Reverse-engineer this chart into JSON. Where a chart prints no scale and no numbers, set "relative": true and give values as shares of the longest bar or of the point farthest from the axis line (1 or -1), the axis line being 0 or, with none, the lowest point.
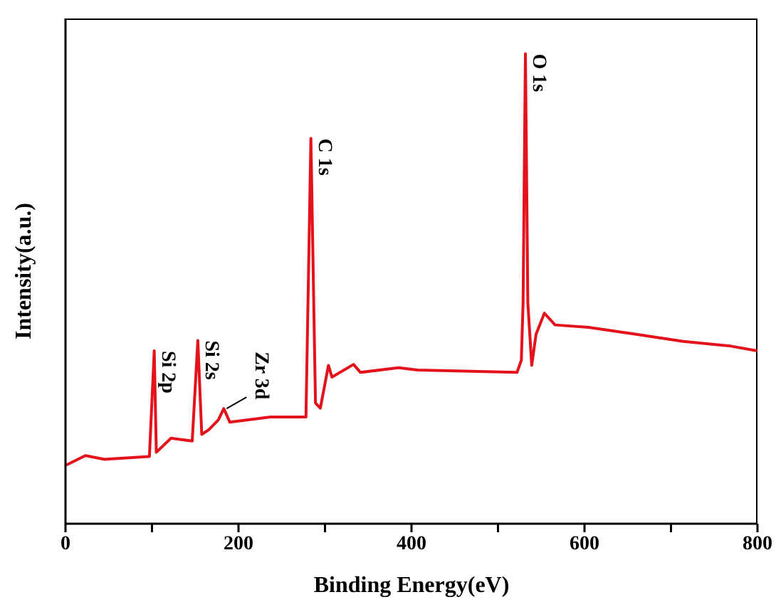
{
  "chart_data": {
    "type": "line",
    "xlabel": "Binding Energy(eV)",
    "ylabel": "Intensity(a.u.)",
    "relative": true,
    "tick_labels": "x",
    "xlim": [
      0,
      800
    ],
    "xticks": [
      0,
      {
        "value": 100,
        "label": null
      },
      200,
      {
        "value": 300,
        "label": null
      },
      400,
      {
        "value": 500,
        "label": null
      },
      600,
      {
        "value": 700,
        "label": null
      },
      800
    ],
    "marker": "none",
    "line_style": "solid",
    "series": [
      {
        "color": "#e3121b",
        "x": [
          1,
          23,
          45,
          97,
          102.6,
          105,
          122,
          146.5,
          153,
          157.5,
          165.7,
          176.7,
          183,
          190,
          237,
          278,
          283.7,
          289,
          294.6,
          304,
          308,
          333,
          341,
          385,
          407,
          522,
          527,
          529,
          531.7,
          534.5,
          539,
          544,
          553.6,
          566,
          604.6,
          659.6,
          714,
          769,
          799.5
        ],
        "values": [
          0.125,
          0.145,
          0.137,
          0.143,
          0.368,
          0.152,
          0.182,
          0.176,
          0.39,
          0.19,
          0.2,
          0.221,
          0.245,
          0.216,
          0.227,
          0.227,
          0.82,
          0.257,
          0.246,
          0.337,
          0.312,
          0.339,
          0.322,
          0.332,
          0.327,
          0.322,
          0.348,
          0.47,
          1.0,
          0.47,
          0.337,
          0.403,
          0.448,
          0.423,
          0.418,
          0.403,
          0.388,
          0.378,
          0.368
        ]
      }
    ],
    "annotations": [
      {
        "text": "Si 2p",
        "x": 102.6,
        "y": 0.368
      },
      {
        "text": "Si 2s",
        "x": 153,
        "y": 0.39
      },
      {
        "text": "Zr 3d",
        "x": 183,
        "y": 0.245
      },
      {
        "text": "C 1s",
        "x": 283.7,
        "y": 0.82
      },
      {
        "text": "O 1s",
        "x": 531.7,
        "y": 1.0
      }
    ]
  }
}
